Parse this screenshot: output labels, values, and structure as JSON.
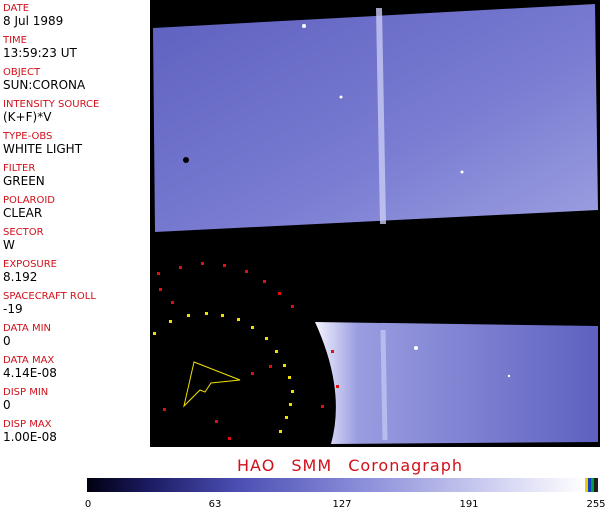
{
  "fields": [
    {
      "label": "DATE",
      "value": "8 Jul 1989"
    },
    {
      "label": "TIME",
      "value": "13:59:23 UT"
    },
    {
      "label": "OBJECT",
      "value": "SUN:CORONA"
    },
    {
      "label": "INTENSITY SOURCE",
      "value": "(K+F)*V"
    },
    {
      "label": "TYPE-OBS",
      "value": "WHITE LIGHT"
    },
    {
      "label": "FILTER",
      "value": "GREEN"
    },
    {
      "label": "POLAROID",
      "value": "CLEAR"
    },
    {
      "label": "SECTOR",
      "value": "W"
    },
    {
      "label": "EXPOSURE",
      "value": "8.192"
    },
    {
      "label": "SPACECRAFT ROLL",
      "value": "-19"
    },
    {
      "label": "DATA MIN",
      "value": "0"
    },
    {
      "label": "DATA MAX",
      "value": "4.14E-08"
    },
    {
      "label": "DISP MIN",
      "value": "0"
    },
    {
      "label": "DISP MAX",
      "value": "1.00E-08"
    }
  ],
  "title": "HAO  SMM  Coronagraph",
  "colorbar": {
    "ticks": [
      0,
      63,
      127,
      191,
      255
    ]
  }
}
